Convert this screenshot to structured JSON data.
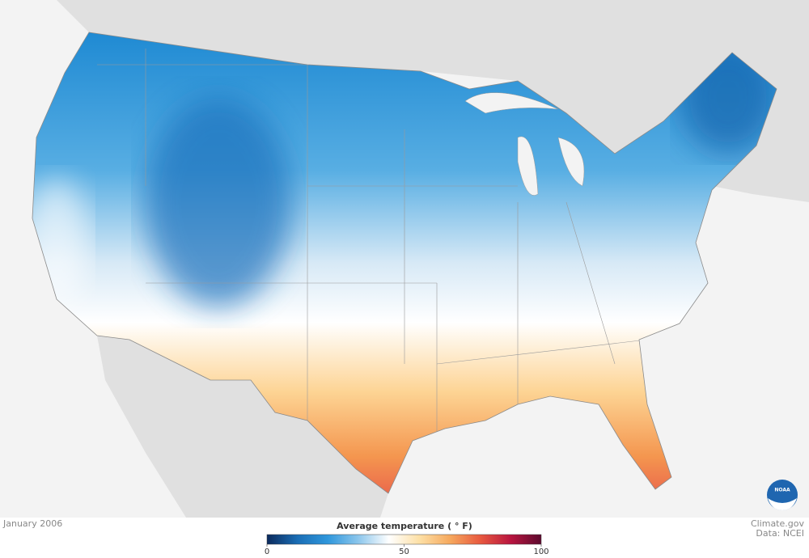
{
  "caption": "January 2006",
  "legend": {
    "title": "Average temperature ( ° F)",
    "range": [
      0,
      100
    ],
    "ticks": [
      0,
      50,
      100
    ],
    "colors": [
      "#0b2a5c",
      "#1a6db5",
      "#2f97dc",
      "#8cc6ec",
      "#ffffff",
      "#fde0a6",
      "#f6a95e",
      "#e8593f",
      "#b8153f",
      "#5c0a2e"
    ]
  },
  "credit": {
    "source": "Climate.gov",
    "data": "Data: NCEI",
    "logo": "NOAA"
  }
}
